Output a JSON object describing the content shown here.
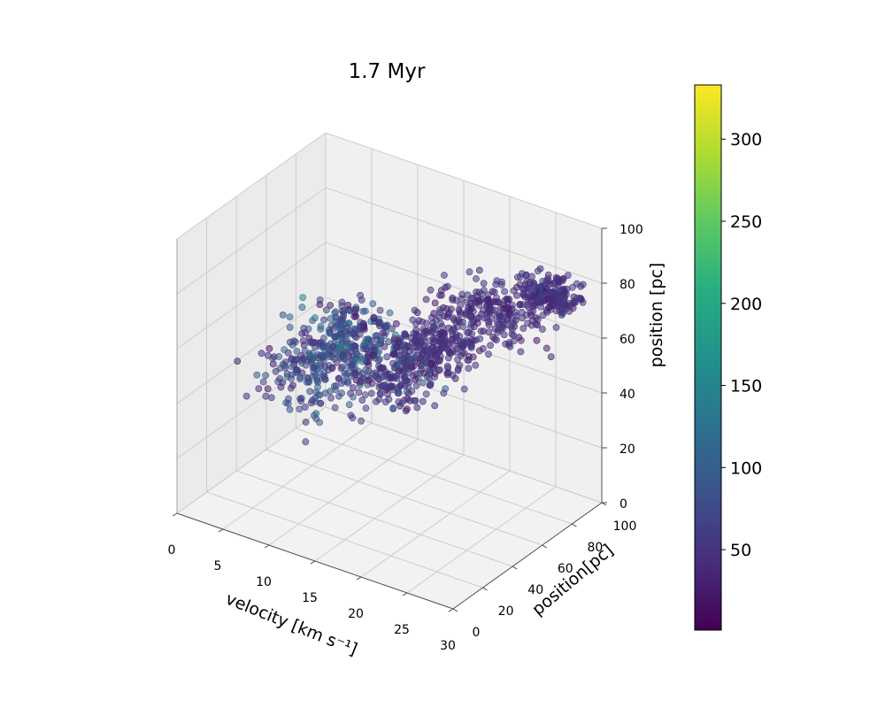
{
  "chart_data": {
    "type": "scatter",
    "projection": "3d",
    "title": "1.7 Myr",
    "xlabel": "velocity [km s⁻¹]",
    "ylabel": "position[pc]",
    "zlabel": "position [pc]",
    "xlim": [
      0,
      30
    ],
    "ylim": [
      0,
      100
    ],
    "zlim": [
      0,
      100
    ],
    "xticks": [
      "0",
      "5",
      "10",
      "15",
      "20",
      "25",
      "30"
    ],
    "yticks": [
      "0",
      "20",
      "40",
      "60",
      "80",
      "100"
    ],
    "zticks": [
      "0",
      "20",
      "40",
      "60",
      "80",
      "100"
    ],
    "grid": true,
    "marker_alpha": 0.55,
    "colormap": "viridis",
    "colorbar": {
      "range": [
        1,
        333
      ],
      "ticks": [
        "50",
        "100",
        "150",
        "200",
        "250",
        "300"
      ]
    },
    "clusters": [
      {
        "x_center": 7,
        "x_spread": 5,
        "y_center": 50,
        "y_spread": 22,
        "z_center": 40,
        "z_spread": 12,
        "value_center": 70,
        "value_spread": 55
      },
      {
        "x_center": 10,
        "x_spread": 5,
        "y_center": 55,
        "y_spread": 18,
        "z_center": 55,
        "z_spread": 10,
        "value_center": 80,
        "value_spread": 60
      },
      {
        "x_center": 14,
        "x_spread": 5,
        "y_center": 60,
        "y_spread": 15,
        "z_center": 45,
        "z_spread": 12,
        "value_center": 60,
        "value_spread": 45
      },
      {
        "x_center": 22,
        "x_spread": 5,
        "y_center": 75,
        "y_spread": 15,
        "z_center": 70,
        "z_spread": 8,
        "value_center": 45,
        "value_spread": 25
      },
      {
        "x_center": 27,
        "x_spread": 3,
        "y_center": 85,
        "y_spread": 10,
        "z_center": 78,
        "z_spread": 5,
        "value_center": 50,
        "value_spread": 25
      },
      {
        "x_center": 18,
        "x_spread": 4,
        "y_center": 65,
        "y_spread": 15,
        "z_center": 58,
        "z_spread": 8,
        "value_center": 45,
        "value_spread": 20
      }
    ]
  }
}
